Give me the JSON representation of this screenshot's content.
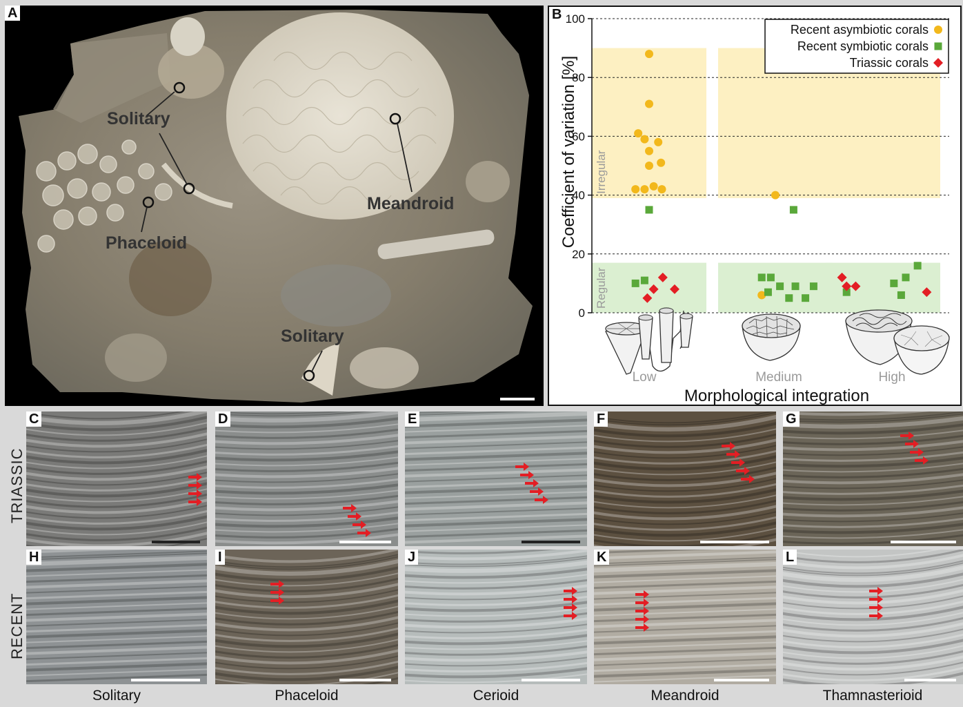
{
  "panelA": {
    "label": "A",
    "annotations": [
      "Solitary",
      "Phaceloid",
      "Meandroid",
      "Solitary"
    ]
  },
  "panelB": {
    "label": "B",
    "chart_data": {
      "type": "scatter",
      "xlabel": "Morphological integration",
      "ylabel": "Coefficient of variation [%]",
      "categories": [
        "Low",
        "Medium",
        "High"
      ],
      "ylim": [
        0,
        100
      ],
      "yticks": [
        0,
        20,
        40,
        60,
        80,
        100
      ],
      "bands": [
        {
          "label": "Irregular",
          "from": 39,
          "to": 90,
          "color": "#fdf0c2"
        },
        {
          "label": "Regular",
          "from": 0,
          "to": 17,
          "color": "#dbefd1"
        }
      ],
      "series": [
        {
          "name": "Recent asymbiotic corals",
          "marker": "circle",
          "color": "#f2b81c",
          "points": [
            [
              0,
              88
            ],
            [
              0,
              71
            ],
            [
              -0.12,
              61
            ],
            [
              -0.05,
              59
            ],
            [
              0.1,
              58
            ],
            [
              0,
              55
            ],
            [
              0.13,
              51
            ],
            [
              0,
              50
            ],
            [
              -0.15,
              42
            ],
            [
              -0.05,
              42
            ],
            [
              0.05,
              43
            ],
            [
              0.14,
              42
            ],
            [
              1,
              40
            ],
            [
              0.85,
              6
            ]
          ]
        },
        {
          "name": "Recent symbiotic corals",
          "marker": "square",
          "color": "#5aa83a",
          "points": [
            [
              0,
              35
            ],
            [
              -0.15,
              10
            ],
            [
              -0.05,
              11
            ],
            [
              1.2,
              35
            ],
            [
              0.85,
              12
            ],
            [
              0.95,
              12
            ],
            [
              0.92,
              7
            ],
            [
              1.05,
              9
            ],
            [
              1.15,
              5
            ],
            [
              1.22,
              9
            ],
            [
              1.33,
              5
            ],
            [
              1.42,
              9
            ],
            [
              1.6,
              7
            ],
            [
              2.12,
              10
            ],
            [
              2.25,
              12
            ],
            [
              2.38,
              16
            ],
            [
              2.2,
              6
            ]
          ]
        },
        {
          "name": "Triassic corals",
          "marker": "diamond",
          "color": "#e31e24",
          "points": [
            [
              -0.02,
              5
            ],
            [
              0.05,
              8
            ],
            [
              0.15,
              12
            ],
            [
              0.28,
              8
            ],
            [
              1.55,
              12
            ],
            [
              1.7,
              9
            ],
            [
              2.48,
              7
            ],
            [
              2.6,
              9
            ]
          ]
        }
      ]
    }
  },
  "micro": {
    "rows": [
      "TRIASSIC",
      "RECENT"
    ],
    "columns": [
      "Solitary",
      "Phaceloid",
      "Cerioid",
      "Meandroid",
      "Thamnasterioid"
    ],
    "panels": [
      {
        "label": "C",
        "bg": "#7a7a78",
        "arrows": 4
      },
      {
        "label": "D",
        "bg": "#8a8d8c",
        "arrows": 4
      },
      {
        "label": "E",
        "bg": "#9aa09f",
        "arrows": 5
      },
      {
        "label": "F",
        "bg": "#5c5040",
        "arrows": 5
      },
      {
        "label": "G",
        "bg": "#6b6558",
        "arrows": 4
      },
      {
        "label": "H",
        "bg": "#8e9294",
        "arrows": 0
      },
      {
        "label": "I",
        "bg": "#6c6458",
        "arrows": 3
      },
      {
        "label": "J",
        "bg": "#b6bcbb",
        "arrows": 4
      },
      {
        "label": "K",
        "bg": "#b1aca2",
        "arrows": 5
      },
      {
        "label": "L",
        "bg": "#c3c5c4",
        "arrows": 4
      }
    ]
  },
  "colors": {
    "arrow": "#e31e24",
    "panel_border": "#111111"
  }
}
